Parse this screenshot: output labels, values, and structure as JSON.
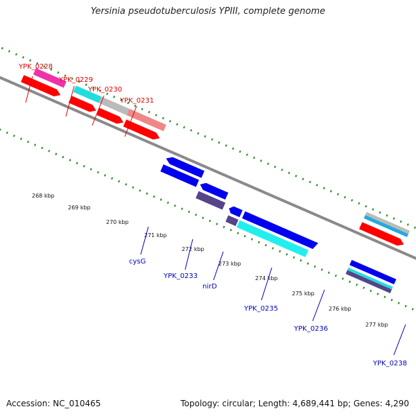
{
  "title": "Yersinia pseudotuberculosis YPIII, complete genome",
  "footer": {
    "accession": "Accession: NC_010465",
    "summary": "Topology: circular; Length: 4,689,441 bp; Genes: 4,290"
  },
  "colors": {
    "forward_gene": "#ff0000",
    "reverse_gene": "#0000ee",
    "forward_label": "#dd0000",
    "reverse_label": "#0000bb",
    "backbone": "#8a8a8a",
    "tick": "#2a8a2a",
    "cyan": "#22dddd",
    "purple": "#55448a",
    "magenta": "#ee33aa",
    "salmon": "#ee8888",
    "gray": "#bbbbbb"
  },
  "scale": {
    "ticks": [
      "268 kbp",
      "269 kbp",
      "270 kbp",
      "271 kbp",
      "272 kbp",
      "273 kbp",
      "274 kbp",
      "275 kbp",
      "276 kbp",
      "277 kbp"
    ]
  },
  "genes": {
    "forward_labels": [
      "YPK_0228",
      "YPK_0229",
      "YPK_0230",
      "YPK_0231"
    ],
    "reverse_labels": [
      "cysG",
      "YPK_0233",
      "nirD",
      "YPK_0235",
      "YPK_0236",
      "YPK_0238"
    ]
  }
}
